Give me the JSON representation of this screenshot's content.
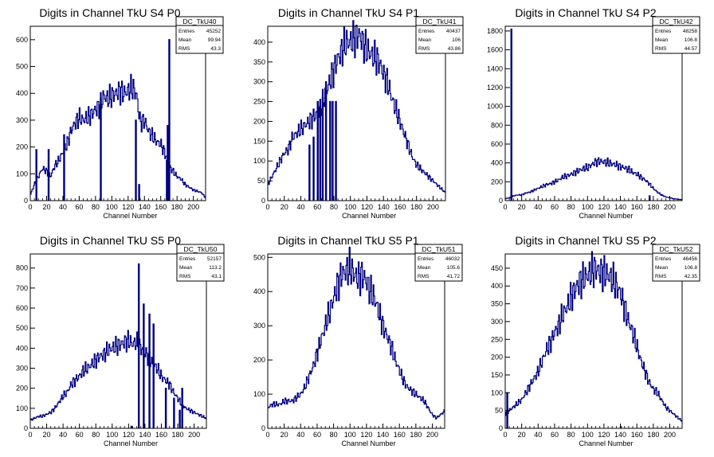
{
  "colors": {
    "line": "#000080",
    "axis": "#000000",
    "background": "#ffffff"
  },
  "chart_data": [
    {
      "type": "bar",
      "title": "Digits in Channel TkU S4 P0",
      "xlabel": "Channel Number",
      "ylabel": "",
      "xlim": [
        0,
        215
      ],
      "ylim": [
        0,
        650
      ],
      "xticks": [
        0,
        20,
        40,
        60,
        80,
        100,
        120,
        140,
        160,
        180,
        200
      ],
      "yticks": [
        0,
        100,
        200,
        300,
        400,
        500,
        600
      ],
      "stats": {
        "name": "DC_TkU40",
        "entries": "45252",
        "mean": "99.94",
        "rms": "43.3"
      },
      "spikes": [
        [
          7,
          190
        ],
        [
          22,
          190
        ],
        [
          41,
          245
        ],
        [
          86,
          380
        ],
        [
          129,
          300
        ],
        [
          133,
          60
        ],
        [
          167,
          150
        ],
        [
          168,
          280
        ],
        [
          170,
          600
        ]
      ],
      "shape": [
        [
          0,
          20
        ],
        [
          5,
          60
        ],
        [
          10,
          90
        ],
        [
          15,
          120
        ],
        [
          20,
          110
        ],
        [
          25,
          90
        ],
        [
          30,
          130
        ],
        [
          35,
          150
        ],
        [
          40,
          180
        ],
        [
          45,
          210
        ],
        [
          50,
          260
        ],
        [
          55,
          290
        ],
        [
          60,
          310
        ],
        [
          65,
          300
        ],
        [
          70,
          310
        ],
        [
          75,
          320
        ],
        [
          80,
          340
        ],
        [
          85,
          350
        ],
        [
          90,
          390
        ],
        [
          95,
          380
        ],
        [
          100,
          390
        ],
        [
          105,
          400
        ],
        [
          110,
          410
        ],
        [
          115,
          400
        ],
        [
          120,
          410
        ],
        [
          125,
          420
        ],
        [
          130,
          400
        ],
        [
          135,
          290
        ],
        [
          140,
          300
        ],
        [
          145,
          260
        ],
        [
          150,
          240
        ],
        [
          155,
          220
        ],
        [
          160,
          210
        ],
        [
          165,
          180
        ],
        [
          170,
          130
        ],
        [
          175,
          110
        ],
        [
          180,
          90
        ],
        [
          185,
          80
        ],
        [
          190,
          60
        ],
        [
          195,
          50
        ],
        [
          200,
          40
        ],
        [
          205,
          35
        ],
        [
          210,
          30
        ],
        [
          215,
          10
        ]
      ]
    },
    {
      "type": "bar",
      "title": "Digits in Channel TkU S4 P1",
      "xlabel": "Channel Number",
      "ylabel": "",
      "xlim": [
        0,
        215
      ],
      "ylim": [
        0,
        440
      ],
      "xticks": [
        0,
        20,
        40,
        60,
        80,
        100,
        120,
        140,
        160,
        180,
        200
      ],
      "yticks": [
        0,
        50,
        100,
        150,
        200,
        250,
        300,
        350,
        400
      ],
      "stats": {
        "name": "DC_TkU41",
        "entries": "40437",
        "mean": "106",
        "rms": "43.86"
      },
      "spikes": [
        [
          50,
          140
        ],
        [
          55,
          160
        ],
        [
          60,
          250
        ],
        [
          63,
          240
        ],
        [
          66,
          260
        ],
        [
          70,
          300
        ],
        [
          75,
          250
        ],
        [
          78,
          250
        ],
        [
          82,
          250
        ]
      ],
      "shape": [
        [
          0,
          40
        ],
        [
          5,
          60
        ],
        [
          10,
          80
        ],
        [
          15,
          100
        ],
        [
          20,
          120
        ],
        [
          25,
          130
        ],
        [
          30,
          160
        ],
        [
          35,
          170
        ],
        [
          40,
          180
        ],
        [
          45,
          190
        ],
        [
          50,
          200
        ],
        [
          55,
          210
        ],
        [
          60,
          220
        ],
        [
          65,
          240
        ],
        [
          70,
          270
        ],
        [
          75,
          300
        ],
        [
          80,
          330
        ],
        [
          85,
          360
        ],
        [
          90,
          380
        ],
        [
          95,
          400
        ],
        [
          100,
          400
        ],
        [
          105,
          410
        ],
        [
          110,
          420
        ],
        [
          115,
          400
        ],
        [
          120,
          380
        ],
        [
          125,
          370
        ],
        [
          130,
          360
        ],
        [
          135,
          350
        ],
        [
          140,
          320
        ],
        [
          145,
          300
        ],
        [
          150,
          260
        ],
        [
          155,
          230
        ],
        [
          160,
          200
        ],
        [
          165,
          170
        ],
        [
          170,
          140
        ],
        [
          175,
          110
        ],
        [
          180,
          90
        ],
        [
          185,
          80
        ],
        [
          190,
          70
        ],
        [
          195,
          60
        ],
        [
          200,
          50
        ],
        [
          205,
          40
        ],
        [
          210,
          30
        ],
        [
          215,
          20
        ]
      ]
    },
    {
      "type": "bar",
      "title": "Digits in Channel TkU S4 P2",
      "xlabel": "Channel Number",
      "ylabel": "",
      "xlim": [
        0,
        215
      ],
      "ylim": [
        0,
        1850
      ],
      "xticks": [
        0,
        20,
        40,
        60,
        80,
        100,
        120,
        140,
        160,
        180,
        200
      ],
      "yticks": [
        0,
        200,
        400,
        600,
        800,
        1000,
        1200,
        1400,
        1600,
        1800
      ],
      "stats": {
        "name": "DC_TkU42",
        "entries": "48258",
        "mean": "106.8",
        "rms": "44.57"
      },
      "spikes": [
        [
          7,
          1820
        ],
        [
          175,
          50
        ]
      ],
      "shape": [
        [
          0,
          20
        ],
        [
          5,
          30
        ],
        [
          10,
          50
        ],
        [
          15,
          60
        ],
        [
          20,
          60
        ],
        [
          25,
          80
        ],
        [
          30,
          90
        ],
        [
          35,
          110
        ],
        [
          40,
          130
        ],
        [
          45,
          150
        ],
        [
          50,
          170
        ],
        [
          55,
          180
        ],
        [
          60,
          200
        ],
        [
          65,
          220
        ],
        [
          70,
          250
        ],
        [
          75,
          260
        ],
        [
          80,
          280
        ],
        [
          85,
          300
        ],
        [
          90,
          320
        ],
        [
          95,
          340
        ],
        [
          100,
          350
        ],
        [
          105,
          380
        ],
        [
          110,
          410
        ],
        [
          115,
          420
        ],
        [
          120,
          410
        ],
        [
          125,
          400
        ],
        [
          130,
          390
        ],
        [
          135,
          380
        ],
        [
          140,
          360
        ],
        [
          145,
          350
        ],
        [
          150,
          330
        ],
        [
          155,
          300
        ],
        [
          160,
          280
        ],
        [
          165,
          250
        ],
        [
          170,
          220
        ],
        [
          175,
          180
        ],
        [
          180,
          130
        ],
        [
          185,
          90
        ],
        [
          190,
          60
        ],
        [
          195,
          40
        ],
        [
          200,
          30
        ],
        [
          205,
          20
        ],
        [
          210,
          15
        ],
        [
          215,
          10
        ]
      ]
    },
    {
      "type": "bar",
      "title": "Digits in Channel TkU S5 P0",
      "xlabel": "Channel Number",
      "ylabel": "",
      "xlim": [
        0,
        215
      ],
      "ylim": [
        0,
        870
      ],
      "xticks": [
        0,
        20,
        40,
        60,
        80,
        100,
        120,
        140,
        160,
        180,
        200
      ],
      "yticks": [
        0,
        100,
        200,
        300,
        400,
        500,
        600,
        700,
        800
      ],
      "stats": {
        "name": "DC_TkU50",
        "entries": "52157",
        "mean": "113.2",
        "rms": "43.1"
      },
      "spikes": [
        [
          123,
          10
        ],
        [
          132,
          820
        ],
        [
          138,
          620
        ],
        [
          145,
          570
        ],
        [
          150,
          520
        ],
        [
          165,
          200
        ],
        [
          175,
          150
        ],
        [
          182,
          90
        ],
        [
          185,
          200
        ]
      ],
      "shape": [
        [
          0,
          40
        ],
        [
          5,
          50
        ],
        [
          10,
          60
        ],
        [
          15,
          60
        ],
        [
          20,
          70
        ],
        [
          25,
          80
        ],
        [
          30,
          100
        ],
        [
          35,
          130
        ],
        [
          40,
          160
        ],
        [
          45,
          180
        ],
        [
          50,
          220
        ],
        [
          55,
          240
        ],
        [
          60,
          260
        ],
        [
          65,
          290
        ],
        [
          70,
          300
        ],
        [
          75,
          320
        ],
        [
          80,
          340
        ],
        [
          85,
          360
        ],
        [
          90,
          370
        ],
        [
          95,
          390
        ],
        [
          100,
          400
        ],
        [
          105,
          410
        ],
        [
          110,
          420
        ],
        [
          115,
          430
        ],
        [
          120,
          440
        ],
        [
          125,
          420
        ],
        [
          130,
          430
        ],
        [
          135,
          400
        ],
        [
          140,
          380
        ],
        [
          145,
          350
        ],
        [
          150,
          320
        ],
        [
          155,
          300
        ],
        [
          160,
          260
        ],
        [
          165,
          240
        ],
        [
          170,
          220
        ],
        [
          175,
          180
        ],
        [
          180,
          150
        ],
        [
          185,
          120
        ],
        [
          190,
          100
        ],
        [
          195,
          90
        ],
        [
          200,
          80
        ],
        [
          205,
          70
        ],
        [
          210,
          60
        ],
        [
          215,
          50
        ]
      ]
    },
    {
      "type": "bar",
      "title": "Digits in Channel TkU S5 P1",
      "xlabel": "Channel Number",
      "ylabel": "",
      "xlim": [
        0,
        215
      ],
      "ylim": [
        0,
        510
      ],
      "xticks": [
        0,
        20,
        40,
        60,
        80,
        100,
        120,
        140,
        160,
        180,
        200
      ],
      "yticks": [
        0,
        100,
        200,
        300,
        400,
        500
      ],
      "stats": {
        "name": "DC_TkU51",
        "entries": "46032",
        "mean": "105.6",
        "rms": "41.72"
      },
      "spikes": [],
      "shape": [
        [
          0,
          60
        ],
        [
          5,
          70
        ],
        [
          10,
          70
        ],
        [
          15,
          70
        ],
        [
          20,
          80
        ],
        [
          25,
          80
        ],
        [
          30,
          80
        ],
        [
          35,
          90
        ],
        [
          40,
          100
        ],
        [
          45,
          120
        ],
        [
          50,
          150
        ],
        [
          55,
          180
        ],
        [
          60,
          220
        ],
        [
          65,
          260
        ],
        [
          70,
          300
        ],
        [
          75,
          340
        ],
        [
          80,
          380
        ],
        [
          85,
          420
        ],
        [
          90,
          450
        ],
        [
          95,
          460
        ],
        [
          100,
          470
        ],
        [
          105,
          450
        ],
        [
          110,
          440
        ],
        [
          115,
          450
        ],
        [
          120,
          430
        ],
        [
          125,
          400
        ],
        [
          130,
          380
        ],
        [
          135,
          340
        ],
        [
          140,
          300
        ],
        [
          145,
          270
        ],
        [
          150,
          240
        ],
        [
          155,
          200
        ],
        [
          160,
          170
        ],
        [
          165,
          140
        ],
        [
          170,
          120
        ],
        [
          175,
          110
        ],
        [
          180,
          100
        ],
        [
          185,
          90
        ],
        [
          190,
          80
        ],
        [
          195,
          60
        ],
        [
          200,
          40
        ],
        [
          205,
          30
        ],
        [
          210,
          40
        ],
        [
          215,
          50
        ]
      ]
    },
    {
      "type": "bar",
      "title": "Digits in Channel TkU S5 P2",
      "xlabel": "Channel Number",
      "ylabel": "",
      "xlim": [
        0,
        215
      ],
      "ylim": [
        0,
        490
      ],
      "xticks": [
        0,
        20,
        40,
        60,
        80,
        100,
        120,
        140,
        160,
        180,
        200
      ],
      "yticks": [
        0,
        50,
        100,
        150,
        200,
        250,
        300,
        350,
        400,
        450
      ],
      "stats": {
        "name": "DC_TkU52",
        "entries": "46456",
        "mean": "106.8",
        "rms": "42.35"
      },
      "spikes": [
        [
          2,
          100
        ],
        [
          140,
          5
        ]
      ],
      "shape": [
        [
          0,
          40
        ],
        [
          5,
          50
        ],
        [
          10,
          60
        ],
        [
          15,
          70
        ],
        [
          20,
          80
        ],
        [
          25,
          100
        ],
        [
          30,
          120
        ],
        [
          35,
          140
        ],
        [
          40,
          160
        ],
        [
          45,
          190
        ],
        [
          50,
          220
        ],
        [
          55,
          240
        ],
        [
          60,
          270
        ],
        [
          65,
          290
        ],
        [
          70,
          320
        ],
        [
          75,
          340
        ],
        [
          80,
          370
        ],
        [
          85,
          390
        ],
        [
          90,
          410
        ],
        [
          95,
          420
        ],
        [
          100,
          430
        ],
        [
          105,
          440
        ],
        [
          110,
          450
        ],
        [
          115,
          440
        ],
        [
          120,
          440
        ],
        [
          125,
          430
        ],
        [
          130,
          420
        ],
        [
          135,
          400
        ],
        [
          140,
          380
        ],
        [
          145,
          340
        ],
        [
          150,
          300
        ],
        [
          155,
          270
        ],
        [
          160,
          230
        ],
        [
          165,
          190
        ],
        [
          170,
          160
        ],
        [
          175,
          130
        ],
        [
          180,
          110
        ],
        [
          185,
          100
        ],
        [
          190,
          80
        ],
        [
          195,
          60
        ],
        [
          200,
          50
        ],
        [
          205,
          40
        ],
        [
          210,
          30
        ],
        [
          215,
          20
        ]
      ]
    }
  ]
}
